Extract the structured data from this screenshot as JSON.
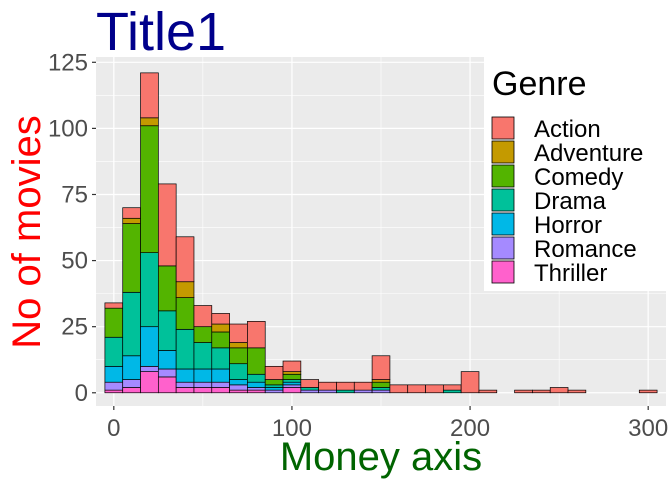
{
  "chart_data": {
    "type": "bar",
    "stacked": true,
    "title": "Title1",
    "xlabel": "Money axis",
    "ylabel": "No of movies",
    "title_color": "#00008B",
    "xlabel_color": "#006400",
    "ylabel_color": "#FF0000",
    "xlim": [
      -10,
      310
    ],
    "ylim": [
      -5,
      127
    ],
    "x_ticks": [
      0,
      100,
      200,
      300
    ],
    "y_ticks": [
      0,
      25,
      50,
      75,
      100,
      125
    ],
    "bin_width": 10,
    "grid": true,
    "legend_position": "top-right",
    "legend_title": "Genre",
    "bin_centers": [
      0,
      10,
      20,
      30,
      40,
      50,
      60,
      70,
      80,
      90,
      100,
      110,
      120,
      130,
      140,
      150,
      160,
      170,
      180,
      190,
      200,
      210,
      220,
      230,
      240,
      250,
      260,
      270,
      280,
      290,
      300
    ],
    "series": [
      {
        "name": "Thriller",
        "color": "#FF61CC",
        "values": [
          1,
          2,
          8,
          6,
          2,
          2,
          2,
          1,
          1,
          0,
          2,
          0,
          0,
          0,
          0,
          0,
          0,
          0,
          0,
          0,
          0,
          0,
          0,
          0,
          0,
          0,
          0,
          0,
          0,
          0,
          0
        ]
      },
      {
        "name": "Romance",
        "color": "#A58AFF",
        "values": [
          3,
          3,
          2,
          3,
          2,
          2,
          2,
          2,
          1,
          1,
          1,
          1,
          1,
          0,
          1,
          1,
          0,
          0,
          0,
          0,
          0,
          0,
          0,
          0,
          0,
          0,
          0,
          0,
          0,
          0,
          0
        ]
      },
      {
        "name": "Horror",
        "color": "#00B8E7",
        "values": [
          6,
          9,
          15,
          7,
          5,
          5,
          5,
          2,
          2,
          1,
          1,
          0,
          0,
          0,
          0,
          0,
          0,
          0,
          0,
          0,
          0,
          0,
          0,
          0,
          0,
          0,
          0,
          0,
          0,
          0,
          0
        ]
      },
      {
        "name": "Drama",
        "color": "#00C19A",
        "values": [
          11,
          24,
          28,
          15,
          15,
          10,
          8,
          6,
          3,
          1,
          1,
          1,
          0,
          1,
          0,
          1,
          0,
          0,
          0,
          1,
          0,
          0,
          0,
          0,
          0,
          0,
          0,
          0,
          0,
          0,
          0
        ]
      },
      {
        "name": "Comedy",
        "color": "#53B400",
        "values": [
          11,
          26,
          48,
          17,
          12,
          6,
          6,
          6,
          10,
          2,
          2,
          0,
          0,
          0,
          0,
          2,
          0,
          0,
          0,
          0,
          0,
          0,
          0,
          0,
          0,
          0,
          0,
          0,
          0,
          0,
          0
        ]
      },
      {
        "name": "Adventure",
        "color": "#C49A00",
        "values": [
          0,
          2,
          3,
          0,
          6,
          0,
          3,
          2,
          0,
          0,
          1,
          0,
          0,
          0,
          0,
          1,
          0,
          0,
          0,
          0,
          0,
          0,
          0,
          0,
          0,
          0,
          0,
          0,
          0,
          0,
          0
        ]
      },
      {
        "name": "Action",
        "color": "#F8766D",
        "values": [
          2,
          4,
          17,
          31,
          17,
          8,
          4,
          7,
          10,
          5,
          4,
          3,
          3,
          3,
          3,
          9,
          3,
          3,
          3,
          2,
          8,
          1,
          0,
          1,
          1,
          2,
          1,
          0,
          0,
          0,
          1
        ]
      }
    ]
  }
}
